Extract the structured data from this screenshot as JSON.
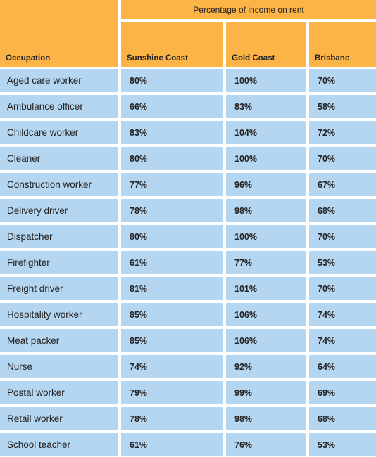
{
  "table": {
    "group_header": "Percentage of income on rent",
    "columns": [
      "Occupation",
      "Sunshine Coast",
      "Gold Coast",
      "Brisbane"
    ],
    "rows": [
      {
        "occupation": "Aged care worker",
        "sunshine_coast": "80%",
        "gold_coast": "100%",
        "brisbane": "70%"
      },
      {
        "occupation": "Ambulance officer",
        "sunshine_coast": "66%",
        "gold_coast": "83%",
        "brisbane": "58%"
      },
      {
        "occupation": "Childcare worker",
        "sunshine_coast": "83%",
        "gold_coast": "104%",
        "brisbane": "72%"
      },
      {
        "occupation": "Cleaner",
        "sunshine_coast": "80%",
        "gold_coast": "100%",
        "brisbane": "70%"
      },
      {
        "occupation": "Construction worker",
        "sunshine_coast": "77%",
        "gold_coast": "96%",
        "brisbane": "67%"
      },
      {
        "occupation": "Delivery driver",
        "sunshine_coast": "78%",
        "gold_coast": "98%",
        "brisbane": "68%"
      },
      {
        "occupation": "Dispatcher",
        "sunshine_coast": "80%",
        "gold_coast": "100%",
        "brisbane": "70%"
      },
      {
        "occupation": "Firefighter",
        "sunshine_coast": "61%",
        "gold_coast": "77%",
        "brisbane": "53%"
      },
      {
        "occupation": "Freight driver",
        "sunshine_coast": "81%",
        "gold_coast": "101%",
        "brisbane": "70%"
      },
      {
        "occupation": "Hospitality worker",
        "sunshine_coast": "85%",
        "gold_coast": "106%",
        "brisbane": "74%"
      },
      {
        "occupation": "Meat packer",
        "sunshine_coast": "85%",
        "gold_coast": "106%",
        "brisbane": "74%"
      },
      {
        "occupation": "Nurse",
        "sunshine_coast": "74%",
        "gold_coast": "92%",
        "brisbane": "64%"
      },
      {
        "occupation": "Postal worker",
        "sunshine_coast": "79%",
        "gold_coast": "99%",
        "brisbane": "69%"
      },
      {
        "occupation": "Retail worker",
        "sunshine_coast": "78%",
        "gold_coast": "98%",
        "brisbane": "68%"
      },
      {
        "occupation": "School teacher",
        "sunshine_coast": "61%",
        "gold_coast": "76%",
        "brisbane": "53%"
      }
    ]
  },
  "colors": {
    "header": "#fdb446",
    "cell": "#b5d6f1"
  }
}
